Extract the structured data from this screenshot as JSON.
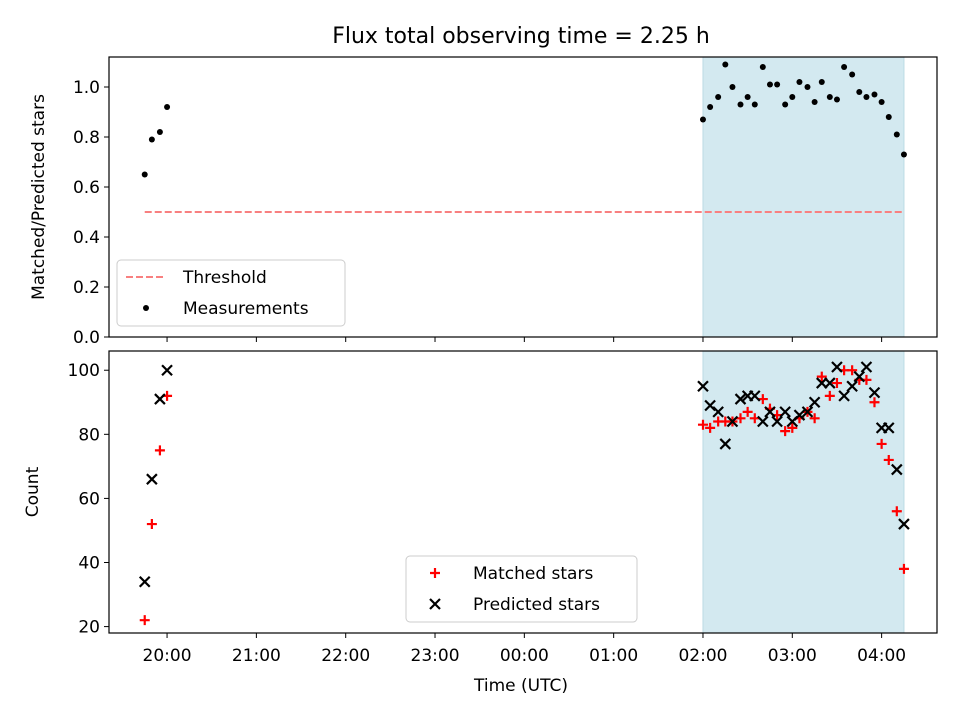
{
  "title": "Flux total observing time = 2.25 h",
  "chart_data": [
    {
      "type": "scatter",
      "panel": "top",
      "title": "Flux total observing time = 2.25 h",
      "ylabel": "Matched/Predicted stars",
      "ylim": [
        0,
        1.12
      ],
      "yticks": [
        0.0,
        0.2,
        0.4,
        0.6,
        0.8,
        1.0
      ],
      "ytick_labels": [
        "0.0",
        "0.2",
        "0.4",
        "0.6",
        "0.8",
        "1.0"
      ],
      "xlim_hours": [
        19.35,
        28.62
      ],
      "grid": false,
      "shaded_region_hours": [
        26.0,
        28.25
      ],
      "shade_color": "#d3e9f0",
      "threshold": {
        "name": "Threshold",
        "value": 0.5,
        "x_hours": [
          19.75,
          28.25
        ],
        "color": "#f88080",
        "style": "dashed"
      },
      "legend": {
        "placement": "lower-left",
        "entries": [
          "Threshold",
          "Measurements"
        ]
      },
      "series": [
        {
          "name": "Measurements",
          "marker": "dot",
          "color": "#000000",
          "x_hours": [
            19.75,
            19.83,
            19.92,
            20.0,
            26.0,
            26.08,
            26.17,
            26.25,
            26.33,
            26.42,
            26.5,
            26.58,
            26.67,
            26.75,
            26.83,
            26.92,
            27.0,
            27.08,
            27.17,
            27.25,
            27.33,
            27.42,
            27.5,
            27.58,
            27.67,
            27.75,
            27.83,
            27.92,
            28.0,
            28.08,
            28.17,
            28.25
          ],
          "values": [
            0.65,
            0.79,
            0.82,
            0.92,
            0.87,
            0.92,
            0.96,
            1.09,
            1.0,
            0.93,
            0.96,
            0.93,
            1.08,
            1.01,
            1.01,
            0.93,
            0.96,
            1.02,
            1.0,
            0.94,
            1.02,
            0.96,
            0.95,
            1.08,
            1.05,
            0.98,
            0.96,
            0.97,
            0.94,
            0.88,
            0.81,
            0.73
          ]
        }
      ]
    },
    {
      "type": "scatter",
      "panel": "bottom",
      "xlabel": "Time (UTC)",
      "ylabel": "Count",
      "ylim": [
        18,
        106
      ],
      "yticks": [
        20,
        40,
        60,
        80,
        100
      ],
      "ytick_labels": [
        "20",
        "40",
        "60",
        "80",
        "100"
      ],
      "xlim_hours": [
        19.35,
        28.62
      ],
      "xticks_hours": [
        20,
        21,
        22,
        23,
        24,
        25,
        26,
        27,
        28
      ],
      "xtick_labels": [
        "20:00",
        "21:00",
        "22:00",
        "23:00",
        "00:00",
        "01:00",
        "02:00",
        "03:00",
        "04:00"
      ],
      "grid": false,
      "shaded_region_hours": [
        26.0,
        28.25
      ],
      "shade_color": "#d3e9f0",
      "legend": {
        "placement": "lower-center",
        "entries": [
          "Matched stars",
          "Predicted stars"
        ]
      },
      "series": [
        {
          "name": "Matched stars",
          "marker": "plus",
          "color": "#ff0000",
          "x_hours": [
            19.75,
            19.83,
            19.92,
            20.0,
            26.0,
            26.08,
            26.17,
            26.25,
            26.33,
            26.42,
            26.5,
            26.58,
            26.67,
            26.75,
            26.83,
            26.92,
            27.0,
            27.08,
            27.17,
            27.25,
            27.33,
            27.42,
            27.5,
            27.58,
            27.67,
            27.75,
            27.83,
            27.92,
            28.0,
            28.08,
            28.17,
            28.25
          ],
          "values": [
            22,
            52,
            75,
            92,
            83,
            82,
            84,
            84,
            84,
            85,
            87,
            85,
            91,
            88,
            86,
            81,
            82,
            85,
            87,
            85,
            98,
            92,
            96,
            100,
            100,
            97,
            97,
            90,
            77,
            72,
            56,
            38
          ]
        },
        {
          "name": "Predicted stars",
          "marker": "x",
          "color": "#000000",
          "x_hours": [
            19.75,
            19.83,
            19.92,
            20.0,
            26.0,
            26.08,
            26.17,
            26.25,
            26.33,
            26.42,
            26.5,
            26.58,
            26.67,
            26.75,
            26.83,
            26.92,
            27.0,
            27.08,
            27.17,
            27.25,
            27.33,
            27.42,
            27.5,
            27.58,
            27.67,
            27.75,
            27.83,
            27.92,
            28.0,
            28.08,
            28.17,
            28.25
          ],
          "values": [
            34,
            66,
            91,
            100,
            95,
            89,
            87,
            77,
            84,
            91,
            92,
            92,
            84,
            87,
            84,
            87,
            84,
            86,
            87,
            90,
            96,
            96,
            101,
            92,
            95,
            98,
            101,
            93,
            82,
            82,
            69,
            52
          ]
        }
      ]
    }
  ]
}
